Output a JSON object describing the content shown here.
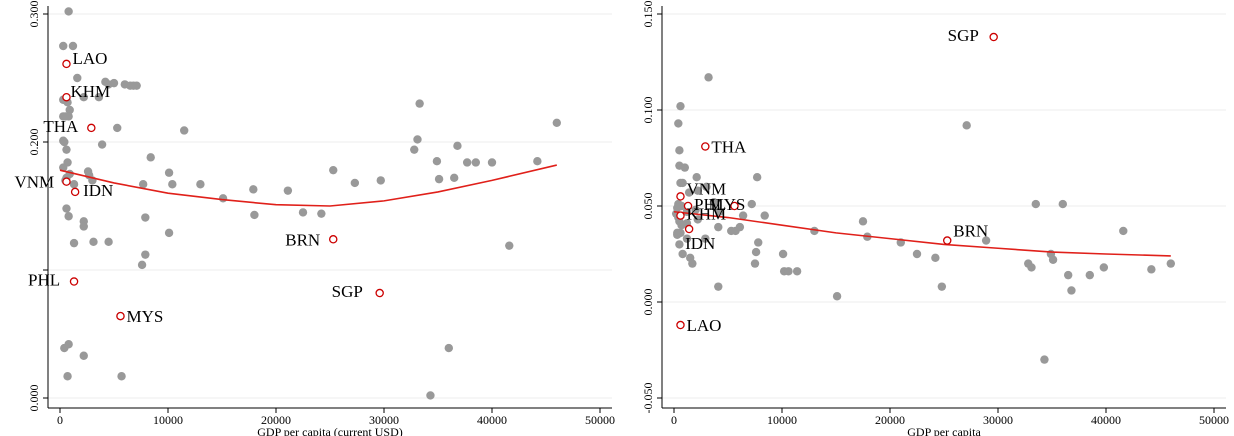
{
  "colors": {
    "background": "#ffffff",
    "gray_point": "#999999",
    "highlight_point": "#cc0000",
    "fit_line": "#e0201a",
    "grid": "#ececec",
    "axis": "#000000"
  },
  "chart_data": [
    {
      "type": "scatter",
      "title": "",
      "xlabel": "GDP per capita (current USD)",
      "ylabel": "",
      "xlim": [
        0,
        50000
      ],
      "ylim": [
        0.0,
        0.3
      ],
      "x_ticks": [
        0,
        10000,
        20000,
        30000,
        40000,
        50000
      ],
      "x_tick_labels": [
        "0",
        "10000",
        "20000",
        "30000",
        "40000",
        "50000"
      ],
      "y_ticks": [
        0.0,
        0.1,
        0.2,
        0.3
      ],
      "y_tick_labels": [
        "0.000",
        "",
        "0.200",
        "0.300"
      ],
      "grid": true,
      "fit_line": {
        "type": "quadratic",
        "points": [
          [
            0,
            0.178
          ],
          [
            5000,
            0.168
          ],
          [
            10000,
            0.16
          ],
          [
            15000,
            0.155
          ],
          [
            20000,
            0.151
          ],
          [
            25000,
            0.15
          ],
          [
            30000,
            0.154
          ],
          [
            35000,
            0.161
          ],
          [
            40000,
            0.17
          ],
          [
            46000,
            0.182
          ]
        ]
      },
      "series": [
        {
          "values": [
            [
              800,
              0.302
            ],
            [
              300,
              0.275
            ],
            [
              1200,
              0.275
            ],
            [
              4200,
              0.247
            ],
            [
              6000,
              0.245
            ],
            [
              6500,
              0.244
            ],
            [
              6800,
              0.244
            ],
            [
              7100,
              0.244
            ],
            [
              2200,
              0.235
            ],
            [
              3600,
              0.235
            ],
            [
              300,
              0.233
            ],
            [
              700,
              0.231
            ],
            [
              900,
              0.225
            ],
            [
              500,
              0.22
            ],
            [
              800,
              0.22
            ],
            [
              300,
              0.22
            ],
            [
              5300,
              0.211
            ],
            [
              11500,
              0.209
            ],
            [
              46000,
              0.215
            ],
            [
              33300,
              0.23
            ],
            [
              300,
              0.201
            ],
            [
              400,
              0.2
            ],
            [
              3900,
              0.198
            ],
            [
              33100,
              0.202
            ],
            [
              36800,
              0.197
            ],
            [
              32800,
              0.194
            ],
            [
              600,
              0.194
            ],
            [
              2600,
              0.177
            ],
            [
              2700,
              0.174
            ],
            [
              8400,
              0.188
            ],
            [
              10100,
              0.176
            ],
            [
              34900,
              0.185
            ],
            [
              37700,
              0.184
            ],
            [
              38500,
              0.184
            ],
            [
              40000,
              0.184
            ],
            [
              44200,
              0.185
            ],
            [
              700,
              0.184
            ],
            [
              25300,
              0.178
            ],
            [
              300,
              0.18
            ],
            [
              900,
              0.175
            ],
            [
              600,
              0.172
            ],
            [
              500,
              0.17
            ],
            [
              3000,
              0.17
            ],
            [
              1300,
              0.167
            ],
            [
              7700,
              0.167
            ],
            [
              10400,
              0.167
            ],
            [
              13000,
              0.167
            ],
            [
              29700,
              0.17
            ],
            [
              27300,
              0.168
            ],
            [
              36500,
              0.172
            ],
            [
              35100,
              0.171
            ],
            [
              17900,
              0.163
            ],
            [
              21100,
              0.162
            ],
            [
              15100,
              0.156
            ],
            [
              600,
              0.148
            ],
            [
              800,
              0.142
            ],
            [
              7900,
              0.141
            ],
            [
              18000,
              0.143
            ],
            [
              22500,
              0.145
            ],
            [
              24200,
              0.144
            ],
            [
              2200,
              0.138
            ],
            [
              2200,
              0.134
            ],
            [
              10100,
              0.129
            ],
            [
              3100,
              0.122
            ],
            [
              4500,
              0.122
            ],
            [
              41600,
              0.119
            ],
            [
              1300,
              0.121
            ],
            [
              7900,
              0.112
            ],
            [
              7600,
              0.104
            ],
            [
              5600,
              0.064
            ],
            [
              4500,
              0.245
            ],
            [
              400,
              0.039
            ],
            [
              800,
              0.042
            ],
            [
              2200,
              0.033
            ],
            [
              36000,
              0.039
            ],
            [
              5700,
              0.017
            ],
            [
              700,
              0.017
            ],
            [
              34300,
              0.002
            ],
            [
              5000,
              0.246
            ],
            [
              1600,
              0.25
            ]
          ]
        }
      ],
      "highlighted_points": [
        {
          "label": "LAO",
          "x": 600,
          "y": 0.261
        },
        {
          "label": "KHM",
          "x": 600,
          "y": 0.235
        },
        {
          "label": "THA",
          "x": 2900,
          "y": 0.211
        },
        {
          "label": "IDN",
          "x": 1400,
          "y": 0.161
        },
        {
          "label": "VNM",
          "x": 600,
          "y": 0.169
        },
        {
          "label": "BRN",
          "x": 25300,
          "y": 0.124
        },
        {
          "label": "PHL",
          "x": 1300,
          "y": 0.091
        },
        {
          "label": "SGP",
          "x": 29600,
          "y": 0.082
        },
        {
          "label": "MYS",
          "x": 5600,
          "y": 0.064
        }
      ]
    },
    {
      "type": "scatter",
      "title": "",
      "xlabel": "GDP per capita",
      "ylabel": "",
      "xlim": [
        0,
        50000
      ],
      "ylim": [
        -0.05,
        0.15
      ],
      "x_ticks": [
        0,
        10000,
        20000,
        30000,
        40000,
        50000
      ],
      "x_tick_labels": [
        "0",
        "10000",
        "20000",
        "30000",
        "40000",
        "50000"
      ],
      "y_ticks": [
        -0.05,
        0.0,
        0.05,
        0.1,
        0.15
      ],
      "y_tick_labels": [
        "-0.050",
        "0.000",
        "0.050",
        "0.100",
        "0.150"
      ],
      "grid": true,
      "fit_line": {
        "type": "smooth",
        "points": [
          [
            0,
            0.047
          ],
          [
            5000,
            0.044
          ],
          [
            10000,
            0.04
          ],
          [
            15000,
            0.036
          ],
          [
            20000,
            0.033
          ],
          [
            25000,
            0.03
          ],
          [
            30000,
            0.028
          ],
          [
            35000,
            0.026
          ],
          [
            40000,
            0.025
          ],
          [
            46000,
            0.024
          ]
        ]
      },
      "series": [
        {
          "values": [
            [
              400,
              0.093
            ],
            [
              600,
              0.102
            ],
            [
              3200,
              0.117
            ],
            [
              27100,
              0.092
            ],
            [
              500,
              0.079
            ],
            [
              500,
              0.071
            ],
            [
              1000,
              0.07
            ],
            [
              2100,
              0.065
            ],
            [
              800,
              0.062
            ],
            [
              600,
              0.062
            ],
            [
              1400,
              0.057
            ],
            [
              2200,
              0.058
            ],
            [
              3000,
              0.06
            ],
            [
              7700,
              0.065
            ],
            [
              400,
              0.051
            ],
            [
              700,
              0.05
            ],
            [
              300,
              0.049
            ],
            [
              1200,
              0.047
            ],
            [
              2000,
              0.048
            ],
            [
              3700,
              0.052
            ],
            [
              7200,
              0.051
            ],
            [
              8400,
              0.045
            ],
            [
              33500,
              0.051
            ],
            [
              36000,
              0.051
            ],
            [
              200,
              0.046
            ],
            [
              400,
              0.044
            ],
            [
              500,
              0.042
            ],
            [
              700,
              0.04
            ],
            [
              1200,
              0.041
            ],
            [
              2200,
              0.043
            ],
            [
              4200,
              0.047
            ],
            [
              6400,
              0.045
            ],
            [
              17500,
              0.042
            ],
            [
              4100,
              0.039
            ],
            [
              5300,
              0.037
            ],
            [
              5700,
              0.037
            ],
            [
              6100,
              0.039
            ],
            [
              13000,
              0.037
            ],
            [
              41600,
              0.037
            ],
            [
              300,
              0.035
            ],
            [
              600,
              0.036
            ],
            [
              1200,
              0.033
            ],
            [
              2900,
              0.033
            ],
            [
              7800,
              0.031
            ],
            [
              17900,
              0.034
            ],
            [
              21000,
              0.031
            ],
            [
              22500,
              0.025
            ],
            [
              24200,
              0.023
            ],
            [
              28900,
              0.032
            ],
            [
              1500,
              0.023
            ],
            [
              800,
              0.025
            ],
            [
              1700,
              0.02
            ],
            [
              7600,
              0.026
            ],
            [
              7500,
              0.02
            ],
            [
              10100,
              0.025
            ],
            [
              10200,
              0.016
            ],
            [
              10600,
              0.016
            ],
            [
              11400,
              0.016
            ],
            [
              32800,
              0.02
            ],
            [
              33100,
              0.018
            ],
            [
              34900,
              0.025
            ],
            [
              35100,
              0.022
            ],
            [
              36500,
              0.014
            ],
            [
              36800,
              0.006
            ],
            [
              38500,
              0.014
            ],
            [
              39800,
              0.018
            ],
            [
              44200,
              0.017
            ],
            [
              46000,
              0.02
            ],
            [
              4100,
              0.008
            ],
            [
              15100,
              0.003
            ],
            [
              24800,
              0.008
            ],
            [
              34300,
              -0.03
            ],
            [
              300,
              0.036
            ],
            [
              500,
              0.03
            ]
          ]
        }
      ],
      "highlighted_points": [
        {
          "label": "SGP",
          "x": 29600,
          "y": 0.138
        },
        {
          "label": "THA",
          "x": 2900,
          "y": 0.081
        },
        {
          "label": "VNM",
          "x": 600,
          "y": 0.055
        },
        {
          "label": "PHL",
          "x": 1300,
          "y": 0.05
        },
        {
          "label": "MYS",
          "x": 5600,
          "y": 0.05
        },
        {
          "label": "KHM",
          "x": 600,
          "y": 0.045
        },
        {
          "label": "IDN",
          "x": 1400,
          "y": 0.038
        },
        {
          "label": "BRN",
          "x": 25300,
          "y": 0.032
        },
        {
          "label": "LAO",
          "x": 600,
          "y": -0.012
        }
      ]
    }
  ]
}
